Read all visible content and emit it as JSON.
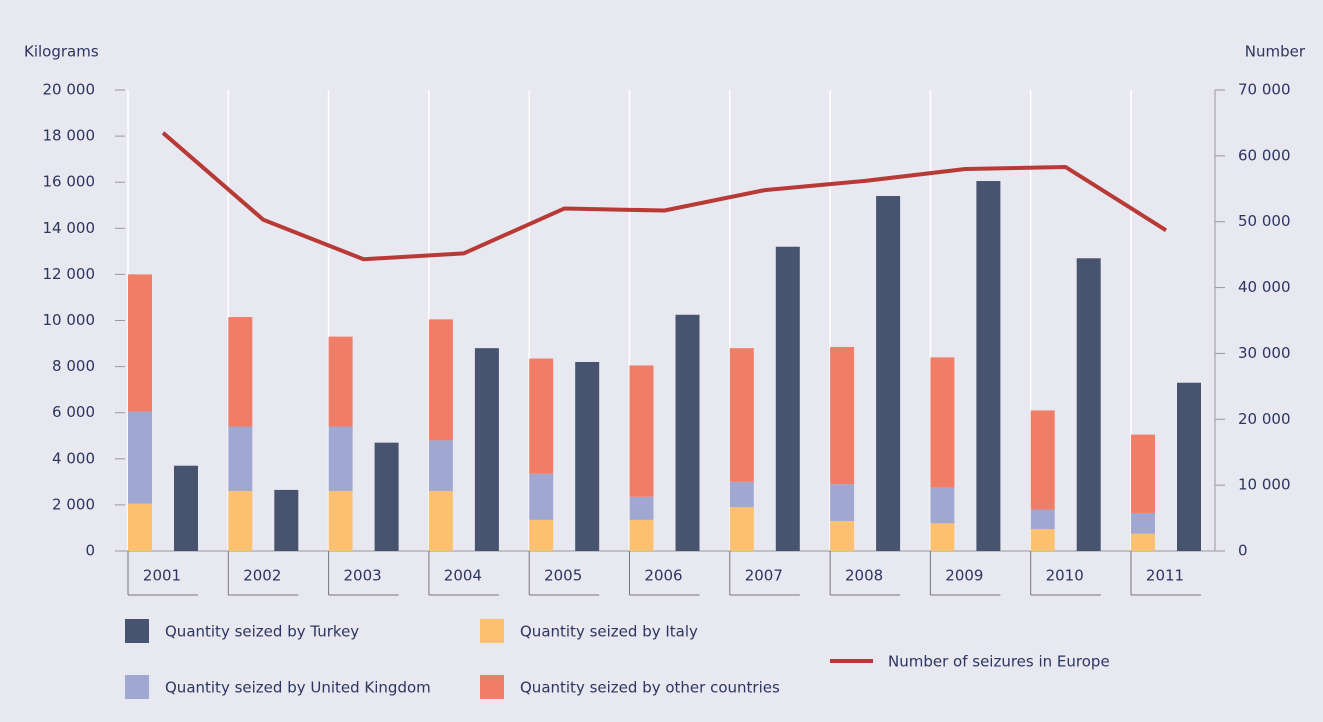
{
  "chart_data": {
    "type": "bar",
    "y_label": "Kilograms",
    "y2_label": "Number",
    "categories": [
      "2001",
      "2002",
      "2003",
      "2004",
      "2005",
      "2006",
      "2007",
      "2008",
      "2009",
      "2010",
      "2011"
    ],
    "series": [
      {
        "name": "Quantity seized by Turkey",
        "color": "#47536f",
        "stacked": false,
        "values": [
          3700,
          2650,
          4700,
          8800,
          8200,
          10250,
          13200,
          15400,
          16050,
          12700,
          7300
        ]
      },
      {
        "name": "Quantity seized by Italy",
        "color": "#fcc170",
        "stacked": true,
        "values": [
          2050,
          2600,
          2600,
          2600,
          1350,
          1350,
          1900,
          1300,
          1200,
          950,
          750
        ]
      },
      {
        "name": "Quantity seized by United Kingdom",
        "color": "#a0a8d2",
        "stacked": true,
        "values": [
          4000,
          2800,
          2800,
          2200,
          2000,
          1000,
          1100,
          1600,
          1550,
          850,
          900
        ]
      },
      {
        "name": "Quantity seized by other countries",
        "color": "#f07e66",
        "stacked": true,
        "values": [
          5950,
          4750,
          3900,
          5250,
          5000,
          5700,
          5800,
          5950,
          5650,
          4300,
          3400
        ]
      },
      {
        "name": "Number of seizures in Europe",
        "color": "#b83a36",
        "type": "line",
        "axis": "y2",
        "values": [
          63500,
          50300,
          44300,
          45200,
          52000,
          51700,
          54800,
          56200,
          58000,
          58300,
          48700
        ]
      }
    ],
    "ylim": [
      0,
      20000
    ],
    "yticks": [
      0,
      {
        "value": 2000,
        "label": "2 000"
      },
      {
        "value": 4000,
        "label": "4 000"
      },
      {
        "value": 6000,
        "label": "6 000"
      },
      {
        "value": 8000,
        "label": "8 000"
      },
      {
        "value": 10000,
        "label": "10 000"
      },
      {
        "value": 12000,
        "label": "12 000"
      },
      {
        "value": 14000,
        "label": "14 000"
      },
      {
        "value": 16000,
        "label": "16 000"
      },
      {
        "value": 18000,
        "label": "18 000"
      },
      {
        "value": 20000,
        "label": "20 000"
      }
    ],
    "y2lim": [
      0,
      70000
    ],
    "y2ticks": [
      0,
      {
        "value": 10000,
        "label": "10 000"
      },
      {
        "value": 20000,
        "label": "20 000"
      },
      {
        "value": 30000,
        "label": "30 000"
      },
      {
        "value": 40000,
        "label": "40 000"
      },
      {
        "value": 50000,
        "label": "50 000"
      },
      {
        "value": 60000,
        "label": "60 000"
      },
      {
        "value": 70000,
        "label": "70 000"
      }
    ]
  }
}
